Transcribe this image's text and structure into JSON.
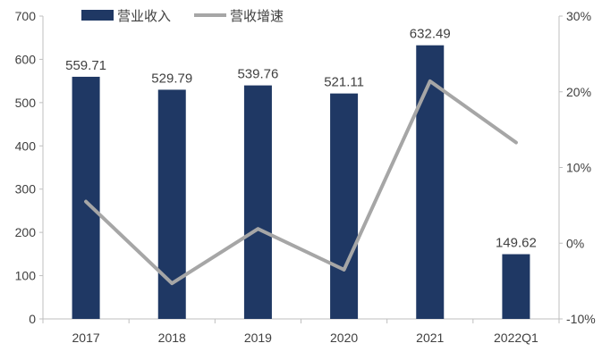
{
  "chart_data": {
    "type": "bar",
    "categories": [
      "2017",
      "2018",
      "2019",
      "2020",
      "2021",
      "2022Q1"
    ],
    "series": [
      {
        "name": "营业收入",
        "type": "bar",
        "axis": "left",
        "color": "#1f3864",
        "values": [
          559.71,
          529.79,
          539.76,
          521.11,
          632.49,
          149.62
        ],
        "labels": [
          "559.71",
          "529.79",
          "539.76",
          "521.11",
          "632.49",
          "149.62"
        ]
      },
      {
        "name": "营收增速",
        "type": "line",
        "axis": "right",
        "color": "#a6a6a6",
        "values": [
          5.5,
          -5.3,
          1.9,
          -3.5,
          21.4,
          13.3
        ]
      }
    ],
    "y_left": {
      "min": 0,
      "max": 700,
      "ticks": [
        "0",
        "100",
        "200",
        "300",
        "400",
        "500",
        "600",
        "700"
      ]
    },
    "y_right": {
      "min": -10,
      "max": 30,
      "ticks": [
        "-10%",
        "0%",
        "10%",
        "20%",
        "30%"
      ]
    },
    "grid": false,
    "legend_position": "top-center"
  }
}
